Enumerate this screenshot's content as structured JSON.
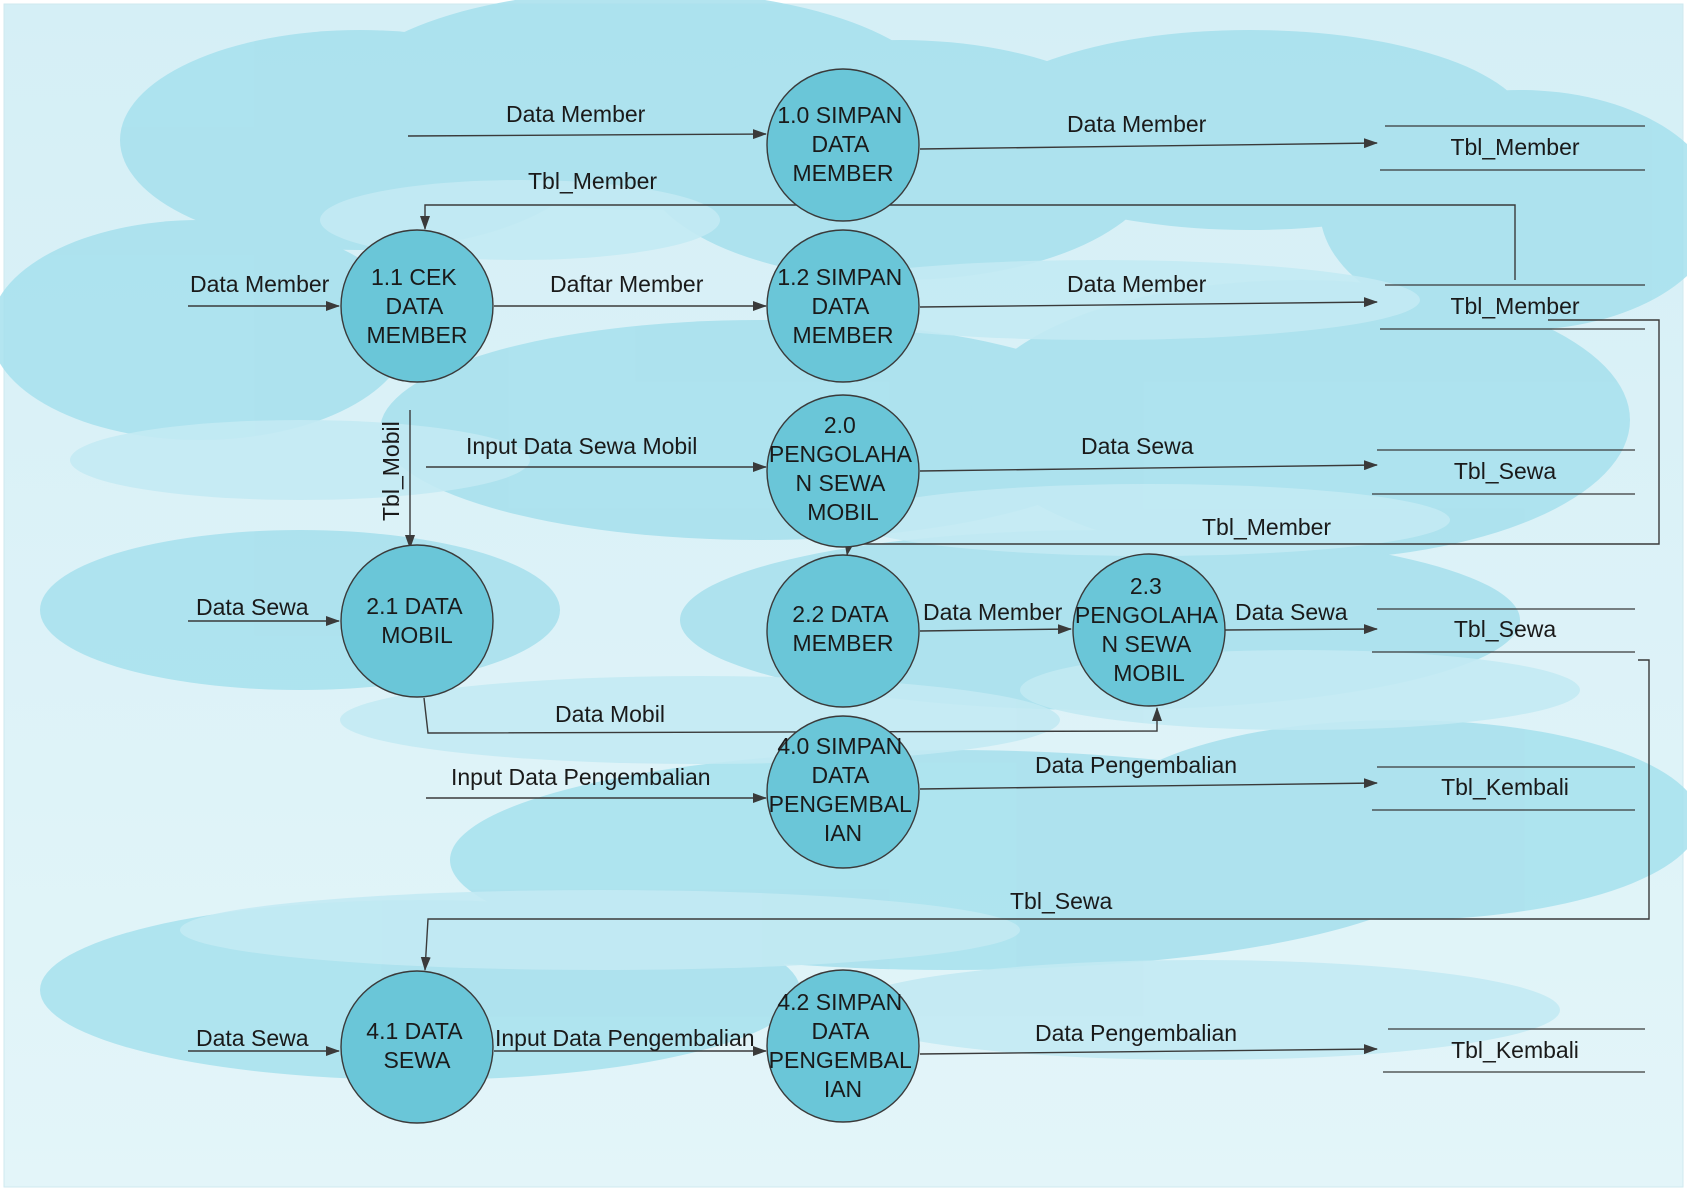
{
  "processes": [
    {
      "key": "p10",
      "lines": [
        "1.0 SIMPAN",
        "DATA",
        "MEMBER"
      ]
    },
    {
      "key": "p11",
      "lines": [
        "1.1 CEK",
        "DATA",
        "MEMBER"
      ]
    },
    {
      "key": "p12",
      "lines": [
        "1.2 SIMPAN",
        "DATA",
        "MEMBER"
      ]
    },
    {
      "key": "p20",
      "lines": [
        "2.0",
        "PENGOLAHA",
        "N SEWA",
        "MOBIL"
      ]
    },
    {
      "key": "p21",
      "lines": [
        "2.1 DATA",
        "MOBIL"
      ]
    },
    {
      "key": "p22",
      "lines": [
        "2.2 DATA",
        "MEMBER"
      ]
    },
    {
      "key": "p23",
      "lines": [
        "2.3",
        "PENGOLAHA",
        "N SEWA",
        "MOBIL"
      ]
    },
    {
      "key": "p40",
      "lines": [
        "4.0 SIMPAN",
        "DATA",
        "PENGEMBAL",
        "IAN"
      ]
    },
    {
      "key": "p41",
      "lines": [
        "4.1 DATA",
        "SEWA"
      ]
    },
    {
      "key": "p42",
      "lines": [
        "4.2 SIMPAN",
        "DATA",
        "PENGEMBAL",
        "IAN"
      ]
    }
  ],
  "stores": [
    {
      "key": "s1",
      "label": "Tbl_Member"
    },
    {
      "key": "s2",
      "label": "Tbl_Member"
    },
    {
      "key": "s3",
      "label": "Tbl_Sewa"
    },
    {
      "key": "s4",
      "label": "Tbl_Sewa"
    },
    {
      "key": "s5",
      "label": "Tbl_Kembali"
    },
    {
      "key": "s6",
      "label": "Tbl_Kembali"
    }
  ],
  "flows": [
    {
      "key": "f1",
      "label": "Data Member"
    },
    {
      "key": "f2",
      "label": "Data Member"
    },
    {
      "key": "f3",
      "label": "Tbl_Member"
    },
    {
      "key": "f4",
      "label": "Data Member"
    },
    {
      "key": "f5",
      "label": "Daftar Member"
    },
    {
      "key": "f6",
      "label": "Data Member"
    },
    {
      "key": "f7",
      "label": "Tbl_Mobil"
    },
    {
      "key": "f8",
      "label": "Input Data Sewa Mobil"
    },
    {
      "key": "f9",
      "label": "Data Sewa"
    },
    {
      "key": "f10",
      "label": "Tbl_Member"
    },
    {
      "key": "f11",
      "label": "Data Sewa"
    },
    {
      "key": "f12",
      "label": "Data Member"
    },
    {
      "key": "f13",
      "label": "Data Sewa"
    },
    {
      "key": "f14",
      "label": "Data Mobil"
    },
    {
      "key": "f15",
      "label": "Input Data Pengembalian"
    },
    {
      "key": "f16",
      "label": "Data Pengembalian"
    },
    {
      "key": "f17",
      "label": "Tbl_Sewa"
    },
    {
      "key": "f18",
      "label": "Data Sewa"
    },
    {
      "key": "f19",
      "label": "Input Data Pengembalian"
    },
    {
      "key": "f20",
      "label": "Data Pengembalian"
    }
  ],
  "colors": {
    "process_fill": "#6ac6d8",
    "background_light": "#dff3f8",
    "background_cloud": "#a9e1ee"
  }
}
